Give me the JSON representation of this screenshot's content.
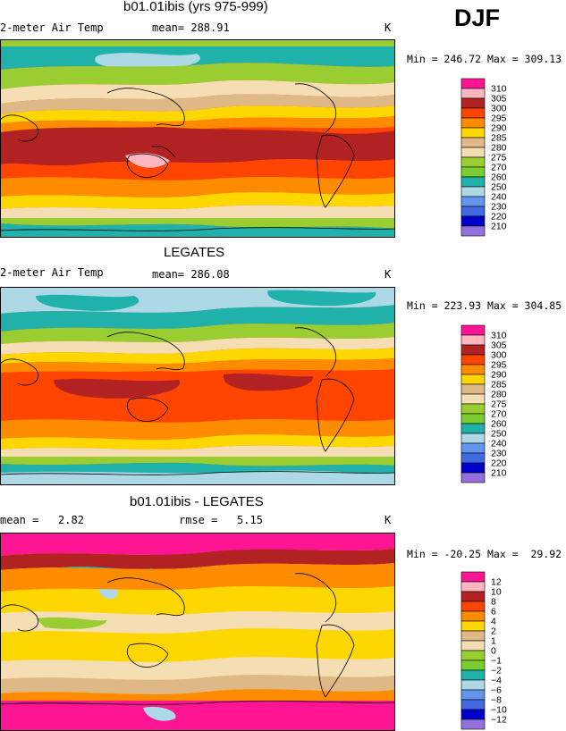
{
  "season": "DJF",
  "panels": [
    {
      "title": "b01.01ibis (yrs 975-999)",
      "variable": "2-meter Air Temp",
      "stat_text": "mean= 288.91",
      "units": "K",
      "minmax": "Min = 246.72 Max = 309.13",
      "colorbar_labels": [
        "310",
        "305",
        "300",
        "295",
        "290",
        "285",
        "280",
        "275",
        "270",
        "260",
        "250",
        "240",
        "230",
        "220",
        "210"
      ],
      "colorbar_colors": [
        "#ff1493",
        "#ffb6c1",
        "#b22222",
        "#ff4500",
        "#ff8c00",
        "#ffd700",
        "#deb887",
        "#f5deb3",
        "#9acd32",
        "#7ccd32",
        "#20b2aa",
        "#add8e6",
        "#6495ed",
        "#4169e1",
        "#0000cd",
        "#9370db"
      ]
    },
    {
      "title": "LEGATES",
      "variable": "2-meter Air Temp",
      "stat_text": "mean= 286.08",
      "units": "K",
      "minmax": "Min = 223.93 Max = 304.85",
      "colorbar_labels": [
        "310",
        "305",
        "300",
        "295",
        "290",
        "285",
        "280",
        "275",
        "270",
        "260",
        "250",
        "240",
        "230",
        "220",
        "210"
      ],
      "colorbar_colors": [
        "#ff1493",
        "#ffb6c1",
        "#b22222",
        "#ff4500",
        "#ff8c00",
        "#ffd700",
        "#deb887",
        "#f5deb3",
        "#9acd32",
        "#7ccd32",
        "#20b2aa",
        "#add8e6",
        "#6495ed",
        "#4169e1",
        "#0000cd",
        "#9370db"
      ]
    },
    {
      "title": "b01.01ibis - LEGATES",
      "mean_text": "mean =   2.82",
      "rmse_text": "rmse =   5.15",
      "units": "K",
      "minmax": "Min = -20.25 Max =  29.92",
      "colorbar_labels": [
        "12",
        "10",
        "8",
        "6",
        "4",
        "2",
        "1",
        "0",
        "−1",
        "−2",
        "−4",
        "−6",
        "−8",
        "−10",
        "−12"
      ],
      "colorbar_colors": [
        "#ff1493",
        "#ffb6c1",
        "#b22222",
        "#ff4500",
        "#ff8c00",
        "#ffd700",
        "#deb887",
        "#f5deb3",
        "#9acd32",
        "#7ccd32",
        "#20b2aa",
        "#add8e6",
        "#6495ed",
        "#4169e1",
        "#0000cd",
        "#9370db"
      ]
    }
  ]
}
